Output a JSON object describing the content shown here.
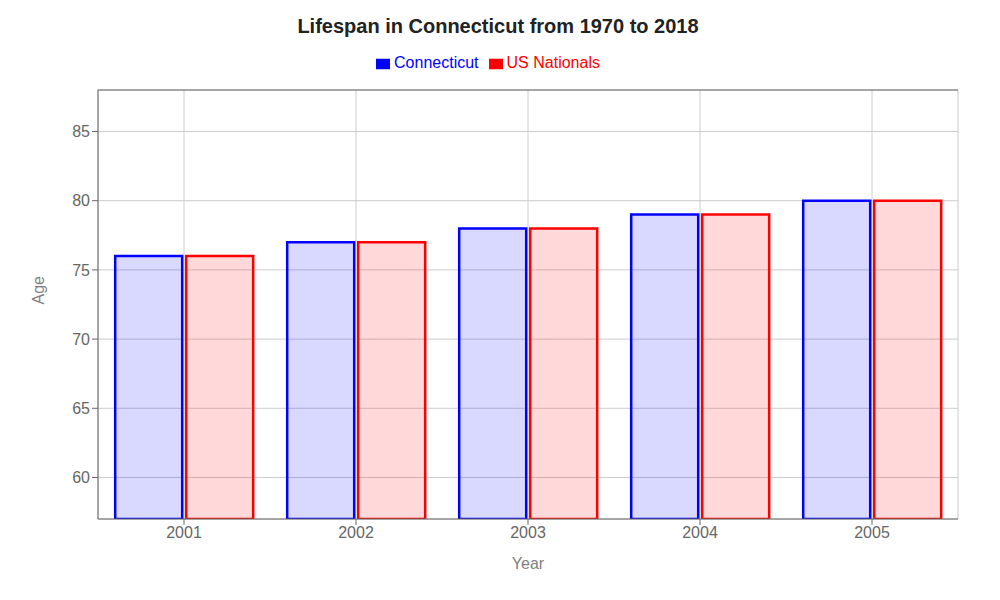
{
  "chart_data": {
    "type": "bar",
    "title": "Lifespan in Connecticut from 1970 to 2018",
    "x_label": "Year",
    "y_label": "Age",
    "categories": [
      "2001",
      "2002",
      "2003",
      "2004",
      "2005"
    ],
    "series": [
      {
        "name": "Connecticut",
        "color": "#0000ff",
        "values": [
          76,
          77,
          78,
          79,
          80
        ]
      },
      {
        "name": "US Nationals",
        "color": "#ff0000",
        "values": [
          76,
          77,
          78,
          79,
          80
        ]
      }
    ],
    "ylim": [
      57,
      88
    ],
    "yticks": [
      60,
      65,
      70,
      75,
      80,
      85
    ],
    "grid": true,
    "legend": "top"
  }
}
